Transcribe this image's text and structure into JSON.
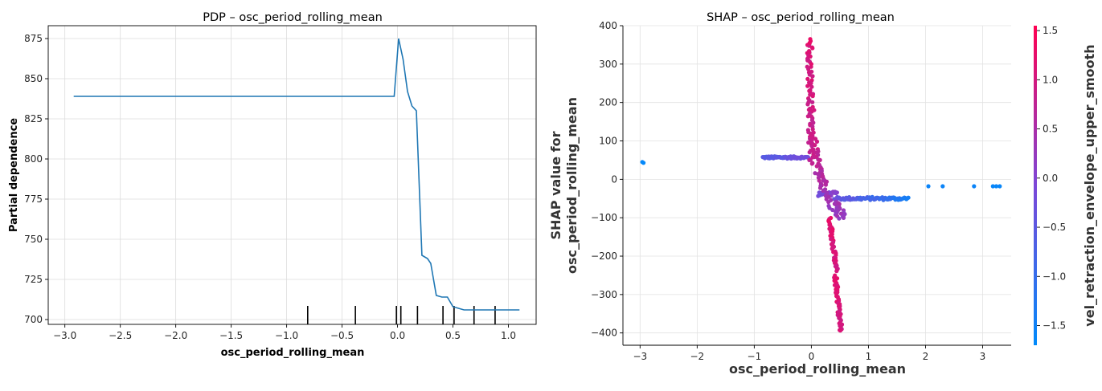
{
  "chart_data": [
    {
      "type": "line",
      "title": "PDP – osc_period_rolling_mean",
      "xlabel": "osc_period_rolling_mean",
      "ylabel": "Partial dependence",
      "xlim": [
        -3.15,
        1.25
      ],
      "ylim": [
        697,
        883
      ],
      "xticks": [
        -3.0,
        -2.5,
        -2.0,
        -1.5,
        -1.0,
        -0.5,
        0.0,
        0.5,
        1.0
      ],
      "xtick_labels": [
        "−3.0",
        "−2.5",
        "−2.0",
        "−1.5",
        "−1.0",
        "−0.5",
        "0.0",
        "0.5",
        "1.0"
      ],
      "yticks": [
        700,
        725,
        750,
        775,
        800,
        825,
        850,
        875
      ],
      "ytick_labels": [
        "700",
        "725",
        "750",
        "775",
        "800",
        "825",
        "850",
        "875"
      ],
      "grid": true,
      "line_color": "#1f77b4",
      "x": [
        -2.92,
        -2.5,
        -2.0,
        -1.5,
        -1.0,
        -0.5,
        -0.03,
        0.01,
        0.05,
        0.09,
        0.13,
        0.17,
        0.22,
        0.27,
        0.3,
        0.35,
        0.4,
        0.45,
        0.5,
        0.55,
        0.6,
        0.65,
        0.7,
        0.8,
        0.9,
        1.0,
        1.1
      ],
      "y": [
        839,
        839,
        839,
        839,
        839,
        839,
        839,
        875,
        862,
        842,
        833,
        830,
        740,
        738,
        735,
        715,
        714,
        714,
        708,
        707,
        706,
        706,
        706,
        706,
        706,
        706,
        706
      ],
      "rug": [
        -0.81,
        -0.38,
        -0.01,
        0.03,
        0.18,
        0.41,
        0.51,
        0.69,
        0.88
      ]
    },
    {
      "type": "scatter",
      "title": "SHAP – osc_period_rolling_mean",
      "xlabel": "osc_period_rolling_mean",
      "ylabel": [
        "SHAP value for",
        "osc_period_rolling_mean"
      ],
      "xlim": [
        -3.3,
        3.5
      ],
      "ylim": [
        -432,
        400
      ],
      "xticks": [
        -3,
        -2,
        -1,
        0,
        1,
        2,
        3
      ],
      "xtick_labels": [
        "−3",
        "−2",
        "−1",
        "0",
        "1",
        "2",
        "3"
      ],
      "yticks": [
        -400,
        -300,
        -200,
        -100,
        0,
        100,
        200,
        300,
        400
      ],
      "ytick_labels": [
        "−400",
        "−300",
        "−200",
        "−100",
        "0",
        "100",
        "200",
        "300",
        "400"
      ],
      "grid": true,
      "colorbar": {
        "label": "vel_retraction_envelope_upper_smooth",
        "range": [
          -1.7,
          1.55
        ],
        "ticks": [
          -1.5,
          -1.0,
          -0.5,
          0.0,
          0.5,
          1.0,
          1.5
        ],
        "tick_labels": [
          "−1.5",
          "−1.0",
          "−0.5",
          "0.0",
          "0.5",
          "1.0",
          "1.5"
        ],
        "colors": [
          "#008afb",
          "#7c47d8",
          "#ff0051"
        ]
      },
      "clusters": [
        {
          "kind": "points",
          "points": [
            [
              -2.96,
              45,
              -1.65
            ],
            [
              -2.94,
              43,
              -1.65
            ],
            [
              2.05,
              -18,
              -1.55
            ],
            [
              2.3,
              -18,
              -1.55
            ],
            [
              2.85,
              -18,
              -1.55
            ],
            [
              3.18,
              -18,
              -1.6
            ],
            [
              3.24,
              -18,
              -1.6
            ],
            [
              3.3,
              -18,
              -1.6
            ]
          ]
        },
        {
          "kind": "hline",
          "x0": -0.85,
          "x1": -0.05,
          "y": 57,
          "jitter": 3,
          "c0": -0.6,
          "c1": -0.2,
          "n": 70
        },
        {
          "kind": "hline",
          "x0": 0.4,
          "x1": 1.7,
          "y": -50,
          "jitter": 4,
          "c0": -0.3,
          "c1": -1.4,
          "n": 75
        },
        {
          "kind": "hline",
          "x0": 0.12,
          "x1": 0.45,
          "y": -38,
          "jitter": 6,
          "c0": -0.3,
          "c1": 0.1,
          "n": 20
        },
        {
          "kind": "vline",
          "y0": 360,
          "y1": 40,
          "xa": -0.03,
          "xb": 0.0,
          "jitter": 0.05,
          "c0": 1.1,
          "c1": 0.8,
          "n": 80
        },
        {
          "kind": "vline",
          "y0": 120,
          "y1": -20,
          "xa": 0.02,
          "xb": 0.2,
          "jitter": 0.05,
          "c0": 0.9,
          "c1": 0.5,
          "n": 30
        },
        {
          "kind": "vline",
          "y0": 30,
          "y1": -100,
          "xa": 0.1,
          "xb": 0.45,
          "jitter": 0.08,
          "c0": 0.6,
          "c1": 0.3,
          "n": 35
        },
        {
          "kind": "vline",
          "y0": -60,
          "y1": -100,
          "xa": 0.45,
          "xb": 0.6,
          "jitter": 0.06,
          "c0": 0.4,
          "c1": 0.2,
          "n": 15
        },
        {
          "kind": "vline",
          "y0": -100,
          "y1": -240,
          "xa": 0.32,
          "xb": 0.44,
          "jitter": 0.03,
          "c0": 1.2,
          "c1": 1.0,
          "n": 45
        },
        {
          "kind": "vline",
          "y0": -250,
          "y1": -395,
          "xa": 0.42,
          "xb": 0.52,
          "jitter": 0.03,
          "c0": 1.2,
          "c1": 1.0,
          "n": 50
        },
        {
          "kind": "points",
          "points": [
            [
              -0.03,
              355,
              1.3
            ],
            [
              -0.02,
              365,
              1.3
            ],
            [
              0.0,
              300,
              1.2
            ],
            [
              0.05,
              180,
              1.0
            ]
          ]
        }
      ]
    }
  ]
}
